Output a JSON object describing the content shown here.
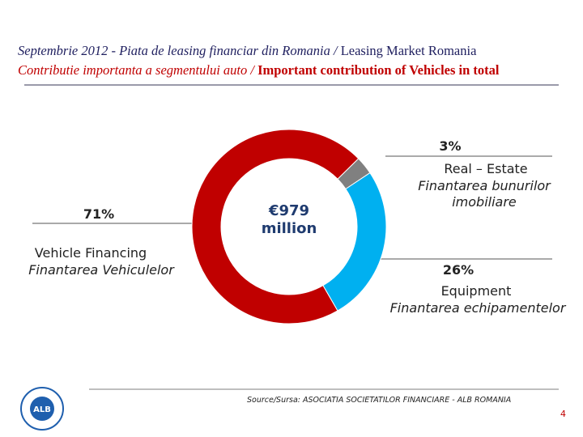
{
  "chart_data": {
    "type": "donut",
    "title": [
      "Septembrie 2012 - Piata de leasing financiar din Romania /",
      "Leasing Market Romania"
    ],
    "subtitle": [
      "Contributie importanta a segmentului auto /",
      "Important contribution of Vehicles in total"
    ],
    "center_label": "€979 million",
    "categories": [
      "Vehicle Financing",
      "Real – Estate",
      "Equipment"
    ],
    "categories_ro": [
      "Finantarea Vehiculelor",
      "Finantarea bunurilor imobiliare",
      "Finantarea echipamentelor"
    ],
    "values": [
      71,
      3,
      26
    ],
    "value_labels": [
      "71%",
      "3%",
      "26%"
    ],
    "colors": [
      "#c00000",
      "#808080",
      "#00b0f0"
    ],
    "source": "Source/Sursa: ASOCIATIA SOCIETATILOR FINANCIARE - ALB ROMANIA",
    "logo": "ALB",
    "page_number": "4"
  }
}
